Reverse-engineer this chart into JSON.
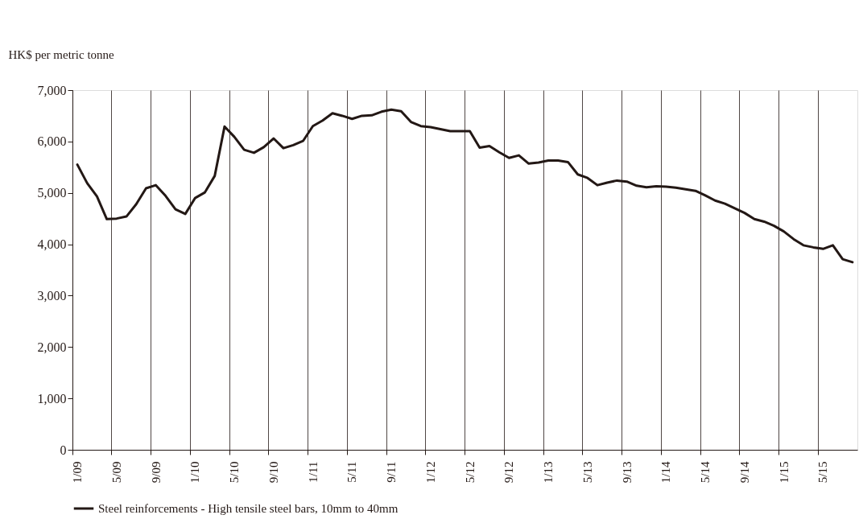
{
  "chart_data": {
    "type": "line",
    "ylabel": "HK$ per metric tonne",
    "categories": [
      "1/09",
      null,
      null,
      null,
      "5/09",
      null,
      null,
      null,
      "9/09",
      null,
      null,
      null,
      "1/10",
      null,
      null,
      null,
      "5/10",
      null,
      null,
      null,
      "9/10",
      null,
      null,
      null,
      "1/11",
      null,
      null,
      null,
      "5/11",
      null,
      null,
      null,
      "9/11",
      null,
      null,
      null,
      "1/12",
      null,
      null,
      null,
      "5/12",
      null,
      null,
      null,
      "9/12",
      null,
      null,
      null,
      "1/13",
      null,
      null,
      null,
      "5/13",
      null,
      null,
      null,
      "9/13",
      null,
      null,
      null,
      "1/14",
      null,
      null,
      null,
      "5/14",
      null,
      null,
      null,
      "9/14",
      null,
      null,
      null,
      "1/15",
      null,
      null,
      null,
      "5/15",
      null,
      null,
      null
    ],
    "series": [
      {
        "name": "Steel reinforcements - High tensile steel bars, 10mm to 40mm",
        "color": "#231815",
        "values": [
          5550,
          5190,
          4930,
          4490,
          4500,
          4540,
          4780,
          5090,
          5150,
          4940,
          4680,
          4590,
          4900,
          5010,
          5330,
          6290,
          6090,
          5840,
          5780,
          5890,
          6060,
          5870,
          5930,
          6010,
          6300,
          6410,
          6550,
          6500,
          6440,
          6500,
          6510,
          6580,
          6620,
          6590,
          6380,
          6300,
          6280,
          6240,
          6200,
          6200,
          6200,
          5880,
          5910,
          5790,
          5680,
          5730,
          5570,
          5590,
          5630,
          5630,
          5600,
          5360,
          5290,
          5150,
          5200,
          5240,
          5220,
          5140,
          5110,
          5130,
          5120,
          5100,
          5070,
          5040,
          4950,
          4850,
          4790,
          4700,
          4610,
          4490,
          4440,
          4360,
          4250,
          4100,
          3980,
          3940,
          3910,
          3980,
          3710,
          3650
        ]
      }
    ],
    "ylim": [
      0,
      7000
    ],
    "yticks": [
      {
        "value": 0,
        "label": "0"
      },
      {
        "value": 1000,
        "label": "1,000"
      },
      {
        "value": 2000,
        "label": "2,000"
      },
      {
        "value": 3000,
        "label": "3,000"
      },
      {
        "value": 4000,
        "label": "4,000"
      },
      {
        "value": 5000,
        "label": "5,000"
      },
      {
        "value": 6000,
        "label": "6,000"
      },
      {
        "value": 7000,
        "label": "7,000"
      }
    ],
    "grid": "x",
    "legend": "bottom"
  }
}
